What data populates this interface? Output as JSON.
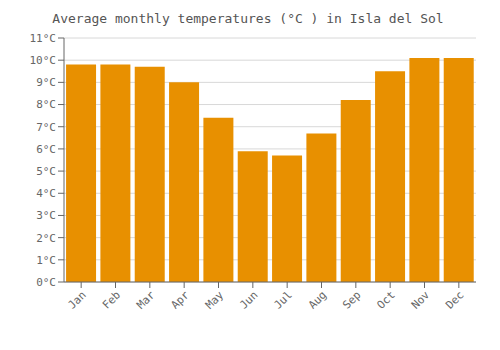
{
  "chart_data": {
    "type": "bar",
    "title": "Average monthly temperatures (°C ) in Isla del Sol",
    "categories": [
      "Jan",
      "Feb",
      "Mar",
      "Apr",
      "May",
      "Jun",
      "Jul",
      "Aug",
      "Sep",
      "Oct",
      "Nov",
      "Dec"
    ],
    "values": [
      9.8,
      9.8,
      9.7,
      9.0,
      7.4,
      5.9,
      5.7,
      6.7,
      8.2,
      9.5,
      10.1,
      10.1
    ],
    "color": "#E89000",
    "ylim": [
      0,
      11
    ],
    "yticks": [
      {
        "value": 0,
        "label": "0°C"
      },
      {
        "value": 1,
        "label": "1°C"
      },
      {
        "value": 2,
        "label": "2°C"
      },
      {
        "value": 3,
        "label": "3°C"
      },
      {
        "value": 4,
        "label": "4°C"
      },
      {
        "value": 5,
        "label": "5°C"
      },
      {
        "value": 6,
        "label": "6°C"
      },
      {
        "value": 7,
        "label": "7°C"
      },
      {
        "value": 8,
        "label": "8°C"
      },
      {
        "value": 9,
        "label": "9°C"
      },
      {
        "value": 10,
        "label": "10°C"
      },
      {
        "value": 11,
        "label": "11°C"
      }
    ],
    "grid": true
  }
}
